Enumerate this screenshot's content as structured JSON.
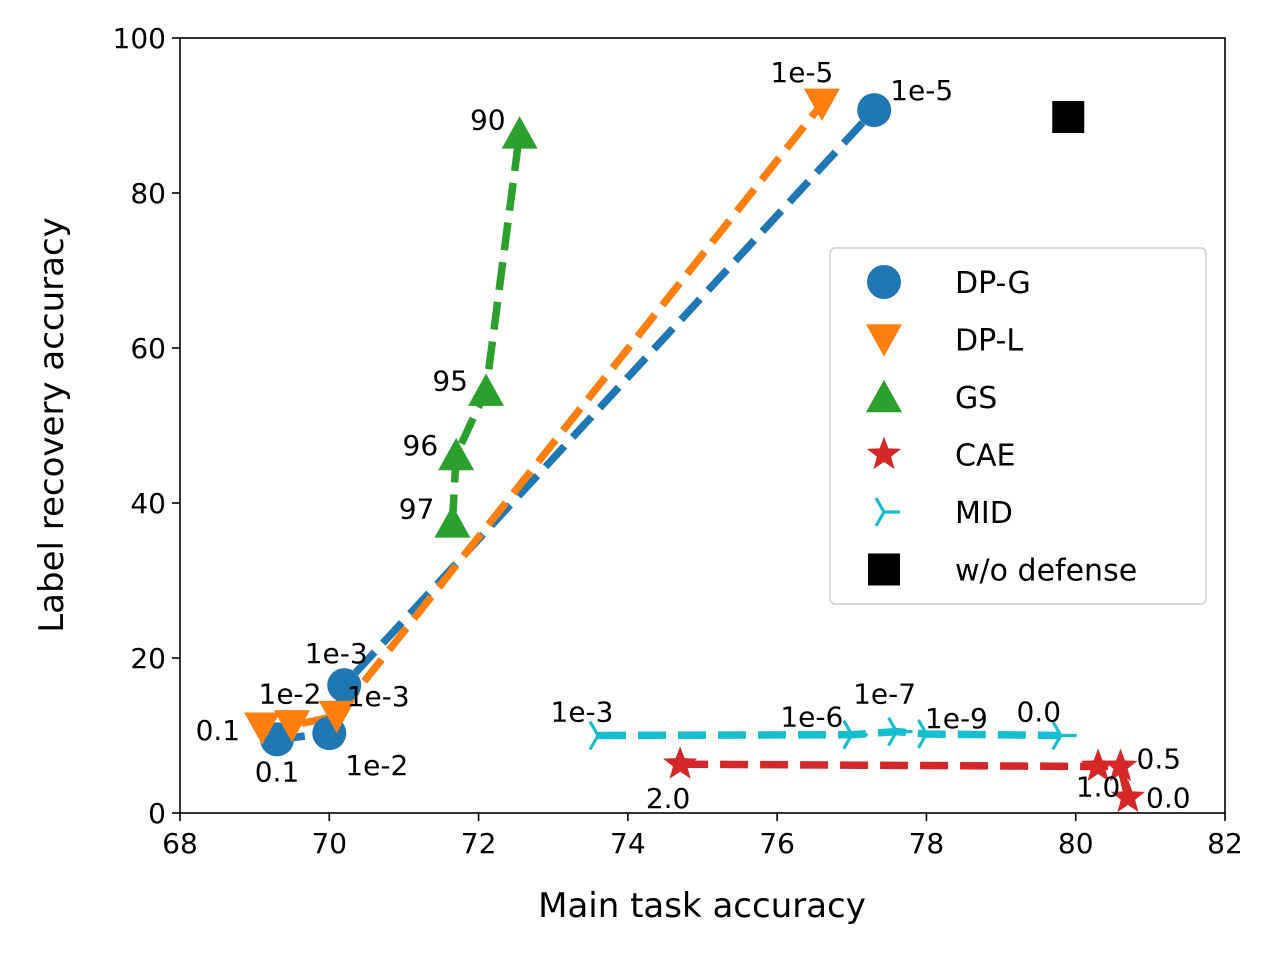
{
  "chart_data": {
    "type": "scatter",
    "title": "",
    "xlabel": "Main task accuracy",
    "ylabel": "Label recovery accuracy",
    "xlim": [
      68,
      82
    ],
    "ylim": [
      0,
      100
    ],
    "xticks": [
      "68",
      "70",
      "72",
      "74",
      "76",
      "78",
      "80",
      "82"
    ],
    "yticks": [
      "0",
      "20",
      "40",
      "60",
      "80",
      "100"
    ],
    "grid": false,
    "legend": "right",
    "series": [
      {
        "name": "DP-G",
        "marker": "circle",
        "color": "#1f77b4",
        "line": true,
        "points": [
          {
            "x": 69.3,
            "y": 9.5,
            "label": "0.1"
          },
          {
            "x": 70.0,
            "y": 10.3,
            "label": "1e-2"
          },
          {
            "x": 70.2,
            "y": 16.5,
            "label": "1e-3"
          },
          {
            "x": 77.3,
            "y": 90.7,
            "label": "1e-5"
          }
        ]
      },
      {
        "name": "DP-L",
        "marker": "triangle-down",
        "color": "#ff7f0e",
        "line": true,
        "points": [
          {
            "x": 69.1,
            "y": 11.0,
            "label": "0.1"
          },
          {
            "x": 69.5,
            "y": 11.3,
            "label": "1e-2"
          },
          {
            "x": 70.1,
            "y": 12.5,
            "label": "1e-3"
          },
          {
            "x": 76.6,
            "y": 91.5,
            "label": "1e-5"
          }
        ]
      },
      {
        "name": "GS",
        "marker": "triangle-up",
        "color": "#2ca02c",
        "line": true,
        "points": [
          {
            "x": 71.65,
            "y": 37.5,
            "label": "97"
          },
          {
            "x": 71.7,
            "y": 46.2,
            "label": "96"
          },
          {
            "x": 72.1,
            "y": 54.5,
            "label": "95"
          },
          {
            "x": 72.55,
            "y": 87.7,
            "label": "90"
          }
        ]
      },
      {
        "name": "CAE",
        "marker": "star",
        "color": "#d62728",
        "line": true,
        "points": [
          {
            "x": 74.7,
            "y": 6.3,
            "label": "2.0"
          },
          {
            "x": 80.3,
            "y": 6.0,
            "label": "1.0"
          },
          {
            "x": 80.6,
            "y": 6.0,
            "label": "0.5"
          },
          {
            "x": 80.7,
            "y": 2.0,
            "label": "0.0"
          }
        ]
      },
      {
        "name": "MID",
        "marker": "tri-right",
        "color": "#17becf",
        "line": true,
        "points": [
          {
            "x": 73.6,
            "y": 10.0,
            "label": "1e-3"
          },
          {
            "x": 77.0,
            "y": 10.1,
            "label": "1e-6"
          },
          {
            "x": 77.6,
            "y": 10.5,
            "label": "1e-7"
          },
          {
            "x": 78.0,
            "y": 10.2,
            "label": "1e-9"
          },
          {
            "x": 79.8,
            "y": 10.0,
            "label": "0.0"
          }
        ]
      },
      {
        "name": "w/o defense",
        "marker": "square",
        "color": "#000000",
        "line": false,
        "points": [
          {
            "x": 79.9,
            "y": 89.8,
            "label": ""
          }
        ]
      }
    ]
  }
}
